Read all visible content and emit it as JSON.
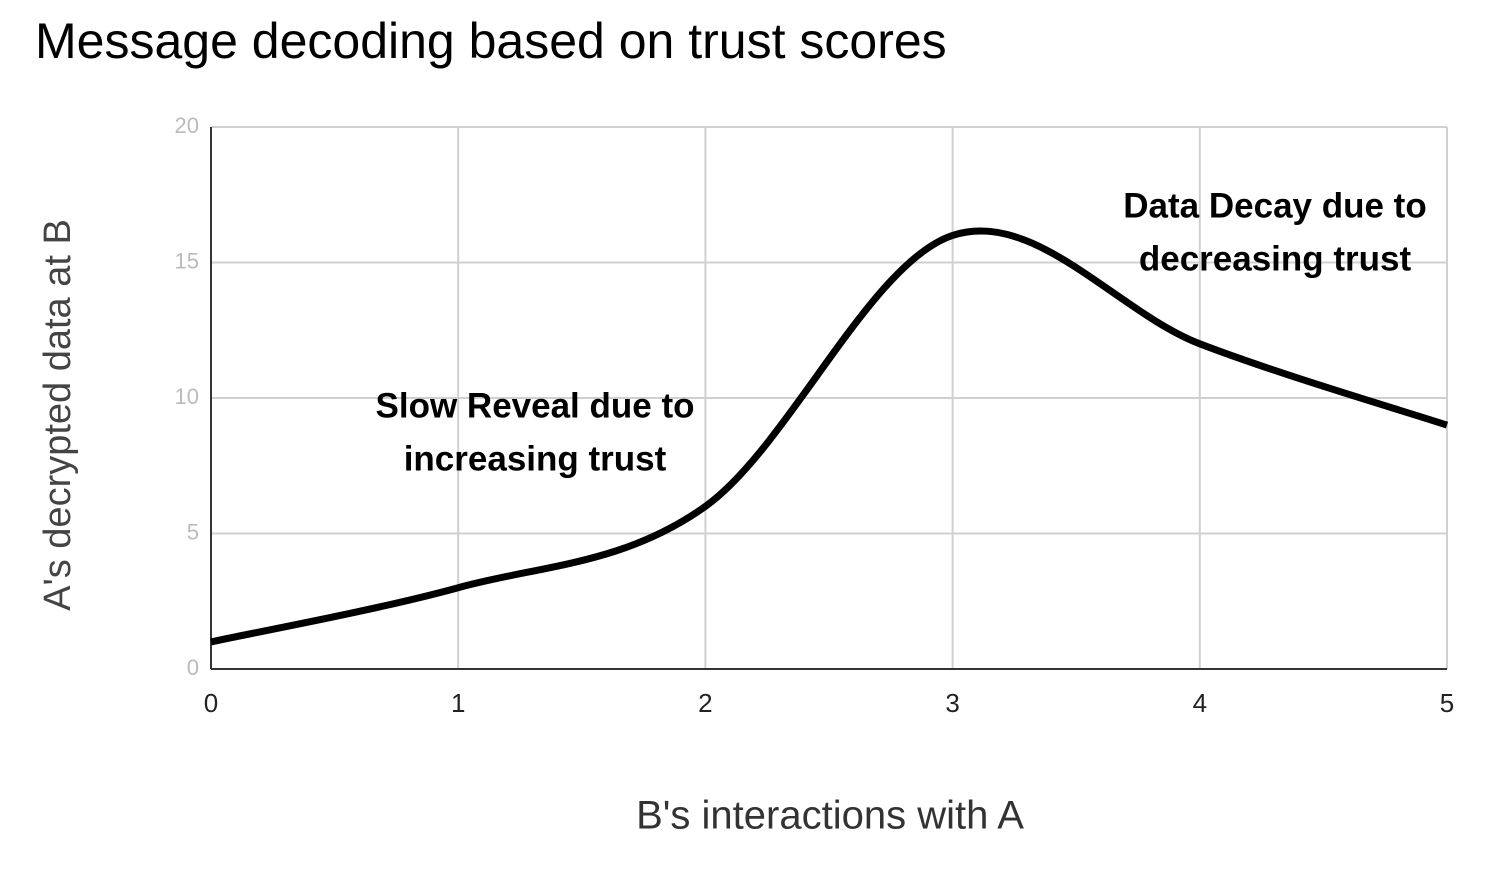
{
  "chart_data": {
    "type": "line",
    "title": "Message decoding based on trust scores",
    "x_label": "B's interactions with A",
    "y_label": "A's decrypted data at B",
    "x": [
      0,
      1,
      2,
      3,
      4,
      5
    ],
    "series": [
      {
        "color": "#000000",
        "values": [
          1,
          3,
          6,
          16,
          12,
          9
        ]
      }
    ],
    "xlim": [
      0,
      5
    ],
    "xticks": [
      0,
      1,
      2,
      3,
      4,
      5
    ],
    "ylim": [
      0,
      20
    ],
    "yticks": [
      0,
      5,
      10,
      15,
      20
    ],
    "grid": true,
    "smooth": true,
    "annotations": [
      [
        "Slow Reveal due to",
        "increasing trust"
      ],
      [
        "Data Decay due to",
        "decreasing trust"
      ]
    ]
  }
}
